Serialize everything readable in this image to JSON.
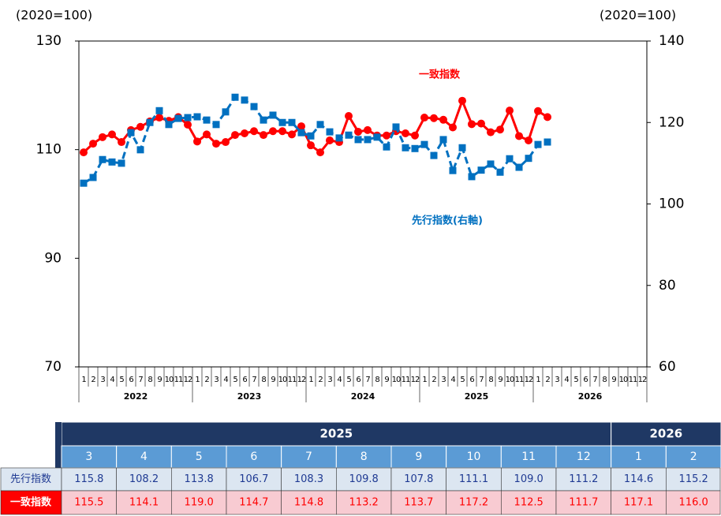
{
  "chart_data": {
    "type": "line",
    "y_unit_label": "(2020=100)",
    "y2_unit_label": "(2020=100)",
    "categories": [
      "1",
      "2",
      "3",
      "4",
      "5",
      "6",
      "7",
      "8",
      "9",
      "10",
      "11",
      "12",
      "1",
      "2",
      "3",
      "4",
      "5",
      "6",
      "7",
      "8",
      "9",
      "10",
      "11",
      "12",
      "1",
      "2",
      "3",
      "4",
      "5",
      "6",
      "7",
      "8",
      "9",
      "10",
      "11",
      "12",
      "1",
      "2",
      "3",
      "4",
      "5",
      "6",
      "7",
      "8",
      "9",
      "10",
      "11",
      "12",
      "1",
      "2",
      "3",
      "4",
      "5",
      "6",
      "7",
      "8",
      "9",
      "10",
      "11",
      "12"
    ],
    "years": [
      "2022",
      "2023",
      "2024",
      "2025",
      "2026"
    ],
    "ylim": [
      70,
      130
    ],
    "yticks": [
      70,
      90,
      110,
      130
    ],
    "y2lim": [
      60,
      140
    ],
    "y2ticks": [
      60,
      80,
      100,
      120,
      140
    ],
    "series": [
      {
        "name": "一致指数",
        "color": "#ff0000",
        "values": [
          109.5,
          111.1,
          112.3,
          112.8,
          111.4,
          113.6,
          114.2,
          115.2,
          115.9,
          115.3,
          116.0,
          114.6,
          111.5,
          112.8,
          111.1,
          111.4,
          112.7,
          113.0,
          113.4,
          112.7,
          113.4,
          113.4,
          112.8,
          114.3,
          110.8,
          109.5,
          111.7,
          111.4,
          116.2,
          113.3,
          113.6,
          112.6,
          112.6,
          113.4,
          113.0,
          112.6,
          115.9,
          115.8,
          115.5,
          114.1,
          119.0,
          114.7,
          114.8,
          113.2,
          113.7,
          117.2,
          112.5,
          111.7,
          117.1,
          116.0,
          null,
          null,
          null,
          null,
          null,
          null,
          null,
          null,
          null,
          null
        ]
      },
      {
        "name": "先行指数(右軸)",
        "color": "#0070c0",
        "axis": "y2",
        "dashed": true,
        "values": [
          105.1,
          106.5,
          110.9,
          110.3,
          110.0,
          117.5,
          113.3,
          120.0,
          122.9,
          119.5,
          121.0,
          121.2,
          121.4,
          120.6,
          119.5,
          122.6,
          126.2,
          125.5,
          123.9,
          120.6,
          121.8,
          120.0,
          120.0,
          117.5,
          116.7,
          119.5,
          117.7,
          116.2,
          116.9,
          115.8,
          115.8,
          116.4,
          114.0,
          118.9,
          113.8,
          113.6,
          114.6,
          111.9,
          115.8,
          108.2,
          113.8,
          106.7,
          108.3,
          109.8,
          107.8,
          111.1,
          109.0,
          111.2,
          114.6,
          115.2,
          null,
          null,
          null,
          null,
          null,
          null,
          null,
          null,
          null,
          null
        ]
      }
    ]
  },
  "table": {
    "years": [
      "2025",
      "2026"
    ],
    "months": [
      "3",
      "4",
      "5",
      "6",
      "7",
      "8",
      "9",
      "10",
      "11",
      "12",
      "1",
      "2"
    ],
    "rows": [
      {
        "label": "先行指数",
        "cells": [
          "115.8",
          "108.2",
          "113.8",
          "106.7",
          "108.3",
          "109.8",
          "107.8",
          "111.1",
          "109.0",
          "111.2",
          "114.6",
          "115.2"
        ]
      },
      {
        "label": "一致指数",
        "cells": [
          "115.5",
          "114.1",
          "119.0",
          "114.7",
          "114.8",
          "113.2",
          "113.7",
          "117.2",
          "112.5",
          "111.7",
          "117.1",
          "116.0"
        ]
      }
    ]
  }
}
